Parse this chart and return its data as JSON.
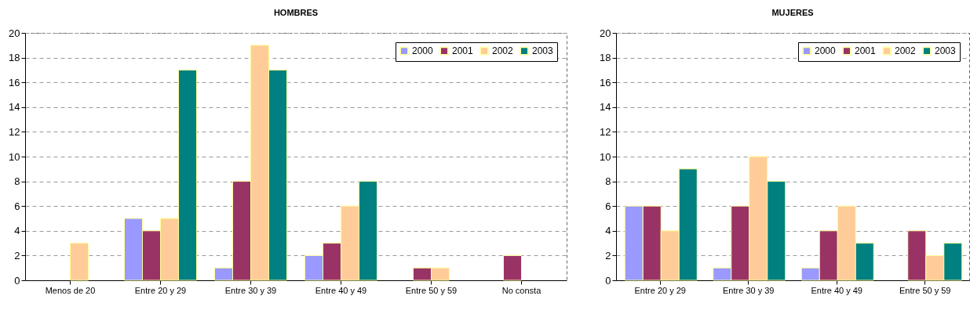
{
  "chart_data": [
    {
      "type": "bar",
      "title": "HOMBRES",
      "categories": [
        "Menos de 20",
        "Entre 20 y 29",
        "Entre 30 y 39",
        "Entre 40 y 49",
        "Entre 50 y 59",
        "No consta"
      ],
      "series": [
        {
          "name": "2000",
          "color": "#9999ff",
          "values": [
            null,
            5,
            1,
            2,
            null,
            null
          ]
        },
        {
          "name": "2001",
          "color": "#993366",
          "values": [
            null,
            4,
            8,
            3,
            1,
            2
          ]
        },
        {
          "name": "2002",
          "color": "#ffcc99",
          "values": [
            3,
            5,
            19,
            6,
            1,
            null
          ]
        },
        {
          "name": "2003",
          "color": "#008080",
          "values": [
            null,
            17,
            17,
            8,
            null,
            null
          ]
        }
      ],
      "ylim": [
        0,
        20
      ],
      "yticks": [
        0,
        2,
        4,
        6,
        8,
        10,
        12,
        14,
        16,
        18,
        20
      ],
      "grid": "y",
      "legend": "top right"
    },
    {
      "type": "bar",
      "title": "MUJERES",
      "categories": [
        "Entre 20 y 29",
        "Entre 30 y 39",
        "Entre 40 y 49",
        "Entre 50 y 59"
      ],
      "series": [
        {
          "name": "2000",
          "color": "#9999ff",
          "values": [
            6,
            1,
            1,
            null
          ]
        },
        {
          "name": "2001",
          "color": "#993366",
          "values": [
            6,
            6,
            4,
            4
          ]
        },
        {
          "name": "2002",
          "color": "#ffcc99",
          "values": [
            4,
            10,
            6,
            2
          ]
        },
        {
          "name": "2003",
          "color": "#008080",
          "values": [
            9,
            8,
            3,
            3
          ]
        }
      ],
      "ylim": [
        0,
        20
      ],
      "yticks": [
        0,
        2,
        4,
        6,
        8,
        10,
        12,
        14,
        16,
        18,
        20
      ],
      "grid": "y",
      "legend": "top right"
    }
  ]
}
